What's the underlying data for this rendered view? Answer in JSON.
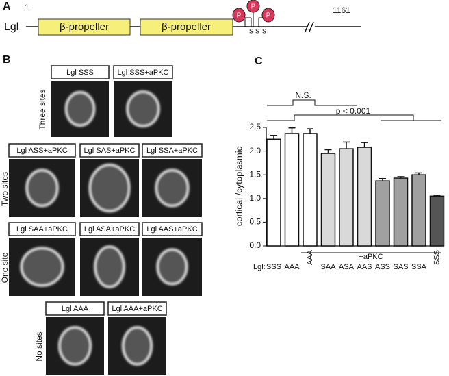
{
  "panel_a": {
    "letter": "A",
    "protein": "Lgl",
    "start": "1",
    "end": "1161",
    "domains": [
      "β-propeller",
      "β-propeller"
    ],
    "phospho": [
      "P",
      "P",
      "P"
    ],
    "sites": [
      "S",
      "S",
      "S"
    ]
  },
  "panel_b": {
    "letter": "B",
    "rows": [
      {
        "label": "Three sites",
        "images": [
          "Lgl SSS",
          "Lgl SSS+aPKC"
        ]
      },
      {
        "label": "Two sites",
        "images": [
          "Lgl ASS+aPKC",
          "Lgl SAS+aPKC",
          "Lgl SSA+aPKC"
        ]
      },
      {
        "label": "One site",
        "images": [
          "Lgl SAA+aPKC",
          "Lgl ASA+aPKC",
          "Lgl AAS+aPKC"
        ]
      },
      {
        "label": "No sites",
        "images": [
          "Lgl AAA",
          "Lgl AAA+aPKC"
        ]
      }
    ]
  },
  "chart_data": {
    "type": "bar",
    "panel": "C",
    "y_label": "cortical /cytoplasmic",
    "x_prefix": "Lgl:",
    "group_label": "+aPKC",
    "annotations": [
      "N.S.",
      "p < 0.001"
    ],
    "categories": [
      "SSS",
      "AAA",
      "AAA",
      "SAA",
      "ASA",
      "AAS",
      "ASS",
      "SAS",
      "SSA",
      "SSS"
    ],
    "label_rotated": [
      false,
      false,
      true,
      false,
      false,
      false,
      false,
      false,
      false,
      true
    ],
    "values": [
      2.25,
      2.37,
      2.37,
      1.95,
      2.05,
      2.08,
      1.37,
      1.43,
      1.5,
      1.05
    ],
    "errors": [
      0.08,
      0.12,
      0.1,
      0.08,
      0.14,
      0.1,
      0.05,
      0.03,
      0.04,
      0.02
    ],
    "colors": [
      "#ffffff",
      "#ffffff",
      "#ffffff",
      "#d9d9d9",
      "#d9d9d9",
      "#d9d9d9",
      "#a0a0a0",
      "#a0a0a0",
      "#a0a0a0",
      "#555555"
    ],
    "ylim": [
      0,
      2.5
    ],
    "yticks": [
      {
        "value": 0,
        "label": "0.0"
      },
      0.5,
      {
        "value": 1,
        "label": "1.0"
      },
      1.5,
      {
        "value": 2,
        "label": "2.0"
      },
      2.5
    ]
  }
}
